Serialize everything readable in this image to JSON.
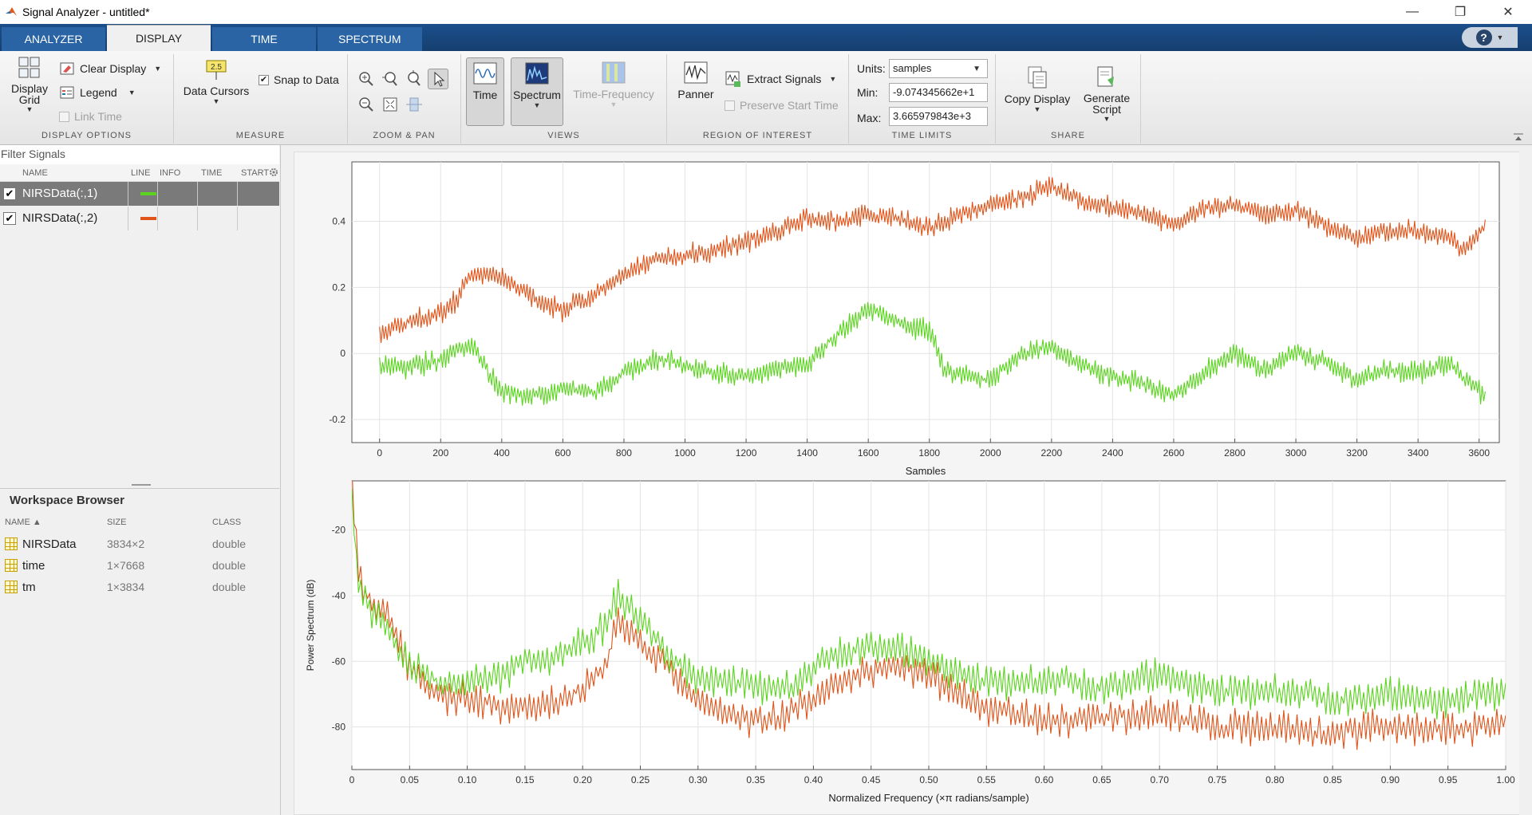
{
  "window": {
    "title": "Signal Analyzer - untitled*"
  },
  "tabs": [
    {
      "label": "ANALYZER",
      "active": false
    },
    {
      "label": "DISPLAY",
      "active": true
    },
    {
      "label": "TIME",
      "active": false
    },
    {
      "label": "SPECTRUM",
      "active": false
    }
  ],
  "toolstrip": {
    "display_options": {
      "title": "DISPLAY OPTIONS",
      "display_grid": "Display Grid",
      "clear_display": "Clear Display",
      "legend": "Legend",
      "link_time": "Link Time"
    },
    "measure": {
      "title": "MEASURE",
      "data_cursors": "Data Cursors",
      "snap_to_data": "Snap to Data",
      "cursor_badge": "2.5"
    },
    "zoom_pan": {
      "title": "ZOOM & PAN"
    },
    "views": {
      "title": "VIEWS",
      "time": "Time",
      "spectrum": "Spectrum",
      "time_frequency": "Time-Frequency"
    },
    "roi": {
      "title": "REGION OF INTEREST",
      "panner": "Panner",
      "extract_signals": "Extract Signals",
      "preserve_start_time": "Preserve Start Time"
    },
    "time_limits": {
      "title": "TIME LIMITS",
      "units_label": "Units:",
      "units_value": "samples",
      "min_label": "Min:",
      "min_value": "-9.074345662e+1",
      "max_label": "Max:",
      "max_value": "3.665979843e+3"
    },
    "share": {
      "title": "SHARE",
      "copy_display": "Copy Display",
      "generate_script": "Generate Script"
    }
  },
  "signals_panel": {
    "filter_placeholder": "Filter Signals",
    "columns": [
      "NAME",
      "LINE",
      "INFO",
      "TIME",
      "START"
    ],
    "rows": [
      {
        "name": "NIRSData(:,1)",
        "color": "#5ad41e",
        "checked": true,
        "selected": true
      },
      {
        "name": "NIRSData(:,2)",
        "color": "#e0541a",
        "checked": true,
        "selected": false
      }
    ]
  },
  "workspace": {
    "title": "Workspace Browser",
    "columns": [
      "NAME ▲",
      "SIZE",
      "CLASS"
    ],
    "rows": [
      {
        "name": "NIRSData",
        "size": "3834×2",
        "class": "double"
      },
      {
        "name": "time",
        "size": "1×7668",
        "class": "double"
      },
      {
        "name": "tm",
        "size": "1×3834",
        "class": "double"
      }
    ]
  },
  "chart_data": [
    {
      "type": "line",
      "title": "",
      "xlabel": "Samples",
      "ylabel": "",
      "xlim": [
        -90.7,
        3666
      ],
      "ylim": [
        -0.27,
        0.58
      ],
      "xticks": [
        0,
        200,
        400,
        600,
        800,
        1000,
        1200,
        1400,
        1600,
        1800,
        2000,
        2200,
        2400,
        2600,
        2800,
        3000,
        3200,
        3400,
        3600
      ],
      "yticks": [
        -0.2,
        0,
        0.2,
        0.4
      ],
      "grid": true,
      "series": [
        {
          "name": "NIRSData(:,1)",
          "color": "#5ad41e",
          "x": [
            0,
            100,
            200,
            300,
            400,
            500,
            600,
            700,
            800,
            900,
            1000,
            1100,
            1200,
            1300,
            1400,
            1500,
            1600,
            1700,
            1800,
            1850,
            1900,
            2000,
            2100,
            2200,
            2300,
            2400,
            2500,
            2600,
            2700,
            2800,
            2900,
            3000,
            3100,
            3200,
            3300,
            3400,
            3500,
            3620
          ],
          "y": [
            -0.04,
            -0.04,
            -0.02,
            0.03,
            -0.12,
            -0.13,
            -0.11,
            -0.12,
            -0.06,
            -0.02,
            -0.03,
            -0.06,
            -0.07,
            -0.04,
            -0.03,
            0.06,
            0.14,
            0.09,
            0.07,
            -0.05,
            -0.06,
            -0.08,
            0.0,
            0.02,
            -0.04,
            -0.07,
            -0.09,
            -0.13,
            -0.06,
            0.0,
            -0.05,
            0.0,
            -0.03,
            -0.08,
            -0.05,
            -0.06,
            -0.03,
            -0.13
          ]
        },
        {
          "name": "NIRSData(:,2)",
          "color": "#e0541a",
          "x": [
            0,
            100,
            200,
            250,
            300,
            400,
            500,
            600,
            700,
            800,
            900,
            1000,
            1100,
            1200,
            1300,
            1400,
            1500,
            1600,
            1700,
            1800,
            1900,
            2000,
            2100,
            2200,
            2300,
            2400,
            2500,
            2600,
            2700,
            2800,
            2900,
            3000,
            3100,
            3200,
            3300,
            3400,
            3500,
            3550,
            3620
          ],
          "y": [
            0.06,
            0.1,
            0.12,
            0.16,
            0.24,
            0.23,
            0.17,
            0.13,
            0.17,
            0.24,
            0.28,
            0.3,
            0.31,
            0.34,
            0.37,
            0.41,
            0.4,
            0.42,
            0.41,
            0.38,
            0.42,
            0.45,
            0.47,
            0.51,
            0.46,
            0.44,
            0.42,
            0.39,
            0.44,
            0.45,
            0.42,
            0.43,
            0.39,
            0.35,
            0.37,
            0.37,
            0.35,
            0.31,
            0.39
          ]
        }
      ]
    },
    {
      "type": "line",
      "title": "",
      "xlabel": "Normalized Frequency (×π radians/sample)",
      "ylabel": "Power Spectrum (dB)",
      "xlim": [
        0,
        1
      ],
      "ylim": [
        -93,
        -5
      ],
      "xticks": [
        0,
        0.05,
        0.1,
        0.15,
        0.2,
        0.25,
        0.3,
        0.35,
        0.4,
        0.45,
        0.5,
        0.55,
        0.6,
        0.65,
        0.7,
        0.75,
        0.8,
        0.85,
        0.9,
        0.95,
        1.0
      ],
      "xticklabels": [
        "0",
        "0.05",
        "0.10",
        "0.15",
        "0.20",
        "0.25",
        "0.30",
        "0.35",
        "0.40",
        "0.45",
        "0.50",
        "0.55",
        "0.60",
        "0.65",
        "0.70",
        "0.75",
        "0.80",
        "0.85",
        "0.90",
        "0.95",
        "1.00"
      ],
      "yticks": [
        -20,
        -40,
        -60,
        -80
      ],
      "grid": true,
      "series": [
        {
          "name": "NIRSData(:,1)",
          "color": "#5ad41e",
          "x": [
            0,
            0.005,
            0.01,
            0.02,
            0.03,
            0.05,
            0.07,
            0.1,
            0.13,
            0.15,
            0.18,
            0.2,
            0.22,
            0.23,
            0.25,
            0.27,
            0.3,
            0.33,
            0.35,
            0.38,
            0.4,
            0.42,
            0.45,
            0.48,
            0.5,
            0.53,
            0.55,
            0.6,
            0.65,
            0.7,
            0.75,
            0.8,
            0.85,
            0.9,
            0.95,
            1.0
          ],
          "y": [
            -10,
            -35,
            -42,
            -45,
            -50,
            -60,
            -66,
            -66,
            -64,
            -60,
            -58,
            -54,
            -50,
            -40,
            -47,
            -56,
            -66,
            -67,
            -68,
            -68,
            -63,
            -58,
            -55,
            -57,
            -60,
            -65,
            -67,
            -66,
            -68,
            -64,
            -70,
            -69,
            -72,
            -70,
            -73,
            -69
          ]
        },
        {
          "name": "NIRSData(:,2)",
          "color": "#e0541a",
          "x": [
            0,
            0.005,
            0.01,
            0.02,
            0.03,
            0.05,
            0.07,
            0.1,
            0.13,
            0.15,
            0.18,
            0.2,
            0.22,
            0.23,
            0.25,
            0.27,
            0.3,
            0.33,
            0.35,
            0.38,
            0.4,
            0.42,
            0.45,
            0.48,
            0.5,
            0.53,
            0.55,
            0.6,
            0.65,
            0.7,
            0.75,
            0.8,
            0.85,
            0.9,
            0.95,
            1.0
          ],
          "y": [
            -5,
            -30,
            -38,
            -44,
            -45,
            -62,
            -70,
            -72,
            -74,
            -74,
            -72,
            -68,
            -62,
            -48,
            -54,
            -60,
            -72,
            -76,
            -78,
            -76,
            -72,
            -66,
            -63,
            -62,
            -64,
            -70,
            -75,
            -78,
            -77,
            -76,
            -80,
            -80,
            -82,
            -79,
            -81,
            -79
          ]
        }
      ]
    }
  ]
}
